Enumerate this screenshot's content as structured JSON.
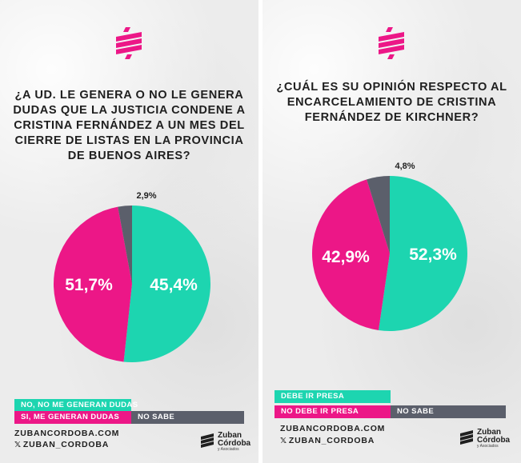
{
  "colors": {
    "teal": "#1dd5b0",
    "pink": "#ec1787",
    "gray": "#5b5f6b",
    "text": "#1f1f1f"
  },
  "footer": {
    "website": "ZUBANCORDOBA.COM",
    "x_handle": "ZUBAN_CORDOBA"
  },
  "brand": {
    "line1": "Zuban",
    "line2": "Córdoba",
    "line3": "y Asociados"
  },
  "chart_data": [
    {
      "type": "pie",
      "title": "¿A UD. LE GENERA O NO LE GENERA DUDAS QUE LA JUSTICIA CONDENE A CRISTINA FERNÁNDEZ A UN MES DEL CIERRE DE LISTAS EN LA PROVINCIA DE BUENOS AIRES?",
      "slices": [
        {
          "label": "NO, NO ME GENERAN DUDAS",
          "value": 51.7,
          "display": "51,7%",
          "color": "#1dd5b0"
        },
        {
          "label": "SI, ME GENERAN DUDAS",
          "value": 45.4,
          "display": "45,4%",
          "color": "#ec1787"
        },
        {
          "label": "NO SABE",
          "value": 2.9,
          "display": "2,9%",
          "color": "#5b5f6b"
        }
      ]
    },
    {
      "type": "pie",
      "title": "¿CUÁL ES SU OPINIÓN RESPECTO AL ENCARCELAMIENTO DE CRISTINA FERNÁNDEZ DE KIRCHNER?",
      "slices": [
        {
          "label": "DEBE IR PRESA",
          "value": 52.3,
          "display": "52,3%",
          "color": "#1dd5b0"
        },
        {
          "label": "NO DEBE IR PRESA",
          "value": 42.9,
          "display": "42,9%",
          "color": "#ec1787"
        },
        {
          "label": "NO SABE",
          "value": 4.8,
          "display": "4,8%",
          "color": "#5b5f6b"
        }
      ]
    }
  ]
}
